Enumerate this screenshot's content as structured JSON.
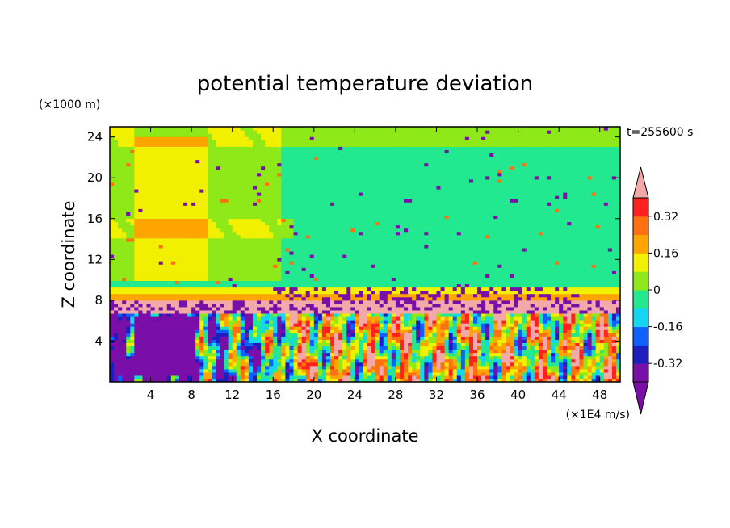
{
  "chart_data": {
    "type": "heatmap",
    "title": "potential temperature deviation",
    "xlabel": "X coordinate",
    "ylabel": "Z coordinate",
    "x_unit": "(×1E4 m/s)",
    "y_unit": "(×1000 m)",
    "time_label": "t=255600 s",
    "xlim": [
      0,
      50
    ],
    "ylim": [
      0,
      25
    ],
    "x_ticks": [
      4,
      8,
      12,
      16,
      20,
      24,
      28,
      32,
      36,
      40,
      44,
      48
    ],
    "y_ticks": [
      4,
      8,
      12,
      16,
      20,
      24
    ],
    "colorbar": {
      "levels": [
        -0.4,
        -0.32,
        -0.24,
        -0.16,
        -0.08,
        0,
        0.08,
        0.16,
        0.24,
        0.32,
        0.4
      ],
      "tick_labels": [
        "0.32",
        "0.16",
        "0",
        "-0.16",
        "-0.32"
      ],
      "tick_values": [
        0.32,
        0.16,
        0,
        -0.16,
        -0.32
      ],
      "colors_low_to_high": [
        "#7a0fa8",
        "#1e1ebe",
        "#1060ff",
        "#14d6f0",
        "#22e890",
        "#8fe818",
        "#f0f000",
        "#ffa500",
        "#ff7010",
        "#ff2020"
      ],
      "under_color": "#7a0fa8",
      "over_color": "#f2a9a9",
      "extend": "both"
    },
    "regions": [
      {
        "x": [
          0,
          50
        ],
        "z": [
          9.5,
          25
        ],
        "value": -0.04,
        "note": "upper layer mostly near zero, slightly negative"
      },
      {
        "x": [
          2,
          10
        ],
        "z": [
          10,
          24
        ],
        "value": 0.12,
        "note": "positive column on left side"
      },
      {
        "x": [
          0,
          50
        ],
        "z": [
          8,
          9.2
        ],
        "value": 0.1,
        "note": "thin warm band near z=8.5"
      },
      {
        "x": [
          0,
          50
        ],
        "z": [
          6.8,
          7.8
        ],
        "value": 0.42,
        "note": "strong positive band near z=7"
      },
      {
        "x": [
          0,
          50
        ],
        "z": [
          0,
          6.8
        ],
        "value": 0.0,
        "note": "turbulent convective layer with values from below -0.4 to above 0.4"
      }
    ]
  }
}
